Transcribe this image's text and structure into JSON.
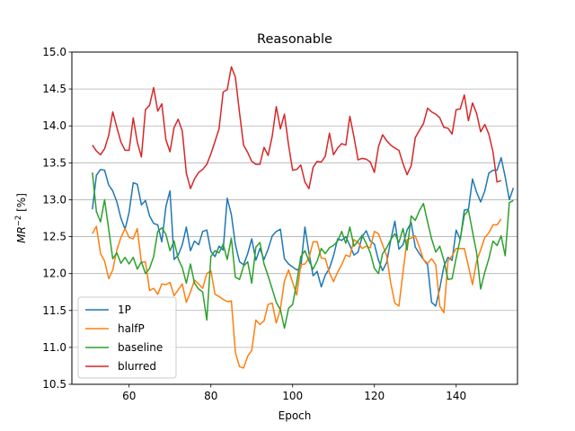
{
  "chart_data": {
    "type": "line",
    "title": "Reasonable",
    "xlabel": "Epoch",
    "ylabel": "MR⁻² [%]",
    "ylabel_main": "MR",
    "ylabel_sup": "−2",
    "ylabel_unit": " [%]",
    "xlim": [
      46,
      155
    ],
    "ylim": [
      10.5,
      15.0
    ],
    "xticks": [
      60,
      80,
      100,
      120,
      140
    ],
    "yticks": [
      10.5,
      11.0,
      11.5,
      12.0,
      12.5,
      13.0,
      13.5,
      14.0,
      14.5,
      15.0
    ],
    "xtick_labels": [
      "60",
      "80",
      "100",
      "120",
      "140"
    ],
    "ytick_labels": [
      "10.5",
      "11.0",
      "11.5",
      "12.0",
      "12.5",
      "13.0",
      "13.5",
      "14.0",
      "14.5",
      "15.0"
    ],
    "grid": "horizontal",
    "legend_position": "lower-left",
    "x_start": 51,
    "series": [
      {
        "name": "1P",
        "color": "#1f77b4",
        "values": [
          12.87,
          13.33,
          13.41,
          13.4,
          13.2,
          13.12,
          12.97,
          12.75,
          12.6,
          12.83,
          13.23,
          13.21,
          12.93,
          12.99,
          12.78,
          12.68,
          12.66,
          12.43,
          12.91,
          13.12,
          12.19,
          12.25,
          12.39,
          12.63,
          12.31,
          12.44,
          12.39,
          12.57,
          12.59,
          12.3,
          12.23,
          12.37,
          12.32,
          13.02,
          12.8,
          12.39,
          12.16,
          12.12,
          12.27,
          12.47,
          12.18,
          12.34,
          12.19,
          12.33,
          12.51,
          12.57,
          12.6,
          12.2,
          12.13,
          12.09,
          12.05,
          12.08,
          12.63,
          12.28,
          11.97,
          12.03,
          11.82,
          11.98,
          12.07,
          12.24,
          12.47,
          12.45,
          12.5,
          12.38,
          12.25,
          12.29,
          12.5,
          12.58,
          12.44,
          12.4,
          12.18,
          12.04,
          12.15,
          12.45,
          12.71,
          12.33,
          12.39,
          12.59,
          12.69,
          12.36,
          12.27,
          12.19,
          12.12,
          11.61,
          11.56,
          11.8,
          12.1,
          12.22,
          12.18,
          12.59,
          12.46,
          12.86,
          12.87,
          13.28,
          13.1,
          12.97,
          13.12,
          13.36,
          13.4,
          13.4,
          13.57,
          13.31,
          13.0,
          13.16
        ]
      },
      {
        "name": "halfP",
        "color": "#ff7f0e",
        "values": [
          12.54,
          12.64,
          12.27,
          12.17,
          11.93,
          12.05,
          12.32,
          12.49,
          12.61,
          12.49,
          12.47,
          12.61,
          12.15,
          12.16,
          11.77,
          11.8,
          11.72,
          11.86,
          11.85,
          11.88,
          11.7,
          11.78,
          11.86,
          11.61,
          11.75,
          11.91,
          11.86,
          11.8,
          12.0,
          12.04,
          11.72,
          11.69,
          11.65,
          11.62,
          11.63,
          10.93,
          10.74,
          10.72,
          10.88,
          10.96,
          11.37,
          11.31,
          11.36,
          11.58,
          11.6,
          11.33,
          11.52,
          11.9,
          12.05,
          11.88,
          11.71,
          12.12,
          12.13,
          12.21,
          12.43,
          12.43,
          12.21,
          12.2,
          12.01,
          11.89,
          12.02,
          12.12,
          12.25,
          12.23,
          12.46,
          12.42,
          12.34,
          12.37,
          12.35,
          12.57,
          12.54,
          12.39,
          12.24,
          11.87,
          11.6,
          11.56,
          12.02,
          12.46,
          12.48,
          12.51,
          12.36,
          12.19,
          12.14,
          12.2,
          12.12,
          11.56,
          11.47,
          12.17,
          12.24,
          12.34,
          12.34,
          12.34,
          12.1,
          11.85,
          12.17,
          12.32,
          12.49,
          12.55,
          12.66,
          12.66,
          12.74
        ]
      },
      {
        "name": "baseline",
        "color": "#2ca02c",
        "values": [
          13.37,
          12.84,
          12.7,
          13.0,
          12.6,
          12.2,
          12.28,
          12.14,
          12.22,
          12.13,
          12.22,
          12.06,
          12.16,
          12.0,
          12.07,
          12.23,
          12.57,
          12.62,
          12.53,
          12.31,
          12.44,
          12.2,
          12.08,
          11.87,
          12.13,
          11.87,
          11.79,
          11.75,
          11.37,
          12.23,
          12.31,
          12.28,
          12.4,
          12.19,
          12.48,
          11.95,
          11.92,
          12.1,
          12.16,
          11.87,
          12.36,
          12.42,
          12.13,
          11.97,
          11.79,
          11.61,
          11.51,
          11.26,
          11.53,
          11.58,
          11.88,
          12.23,
          12.31,
          12.17,
          12.06,
          12.17,
          12.34,
          12.27,
          12.35,
          12.38,
          12.44,
          12.57,
          12.41,
          12.63,
          12.37,
          12.44,
          12.52,
          12.41,
          12.28,
          12.07,
          12.0,
          12.27,
          12.35,
          12.46,
          12.54,
          12.42,
          12.61,
          12.32,
          12.78,
          12.72,
          12.85,
          12.95,
          12.7,
          12.47,
          12.29,
          12.37,
          12.18,
          11.92,
          11.93,
          12.21,
          12.47,
          12.79,
          12.86,
          12.57,
          12.28,
          11.79,
          12.02,
          12.2,
          12.44,
          12.38,
          12.51,
          12.24,
          12.96,
          12.99
        ]
      },
      {
        "name": "blurred",
        "color": "#d62728",
        "values": [
          13.74,
          13.66,
          13.61,
          13.69,
          13.87,
          14.19,
          13.98,
          13.78,
          13.67,
          13.67,
          14.11,
          13.78,
          13.58,
          14.22,
          14.28,
          14.52,
          14.2,
          14.3,
          13.81,
          13.65,
          13.98,
          14.09,
          13.93,
          13.36,
          13.15,
          13.28,
          13.37,
          13.41,
          13.48,
          13.62,
          13.79,
          13.96,
          14.46,
          14.49,
          14.8,
          14.66,
          14.18,
          13.74,
          13.64,
          13.52,
          13.48,
          13.48,
          13.71,
          13.6,
          13.86,
          14.26,
          13.96,
          14.16,
          13.74,
          13.4,
          13.41,
          13.47,
          13.24,
          13.15,
          13.44,
          13.52,
          13.51,
          13.59,
          13.9,
          13.61,
          13.7,
          13.76,
          13.74,
          14.13,
          13.85,
          13.54,
          13.56,
          13.55,
          13.51,
          13.37,
          13.72,
          13.88,
          13.8,
          13.74,
          13.7,
          13.67,
          13.49,
          13.34,
          13.46,
          13.84,
          13.94,
          14.03,
          14.24,
          14.19,
          14.16,
          14.11,
          13.98,
          13.97,
          13.89,
          14.22,
          14.23,
          14.42,
          14.07,
          14.31,
          14.17,
          13.92,
          14.02,
          13.89,
          13.65,
          13.24,
          13.26
        ]
      }
    ]
  }
}
